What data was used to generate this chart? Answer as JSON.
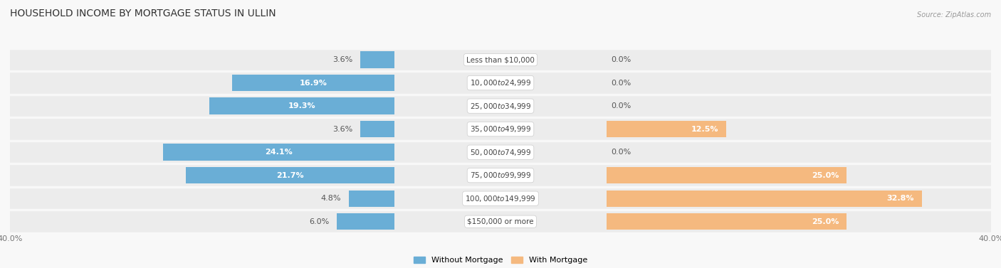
{
  "title": "HOUSEHOLD INCOME BY MORTGAGE STATUS IN ULLIN",
  "source": "Source: ZipAtlas.com",
  "categories": [
    "Less than $10,000",
    "$10,000 to $24,999",
    "$25,000 to $34,999",
    "$35,000 to $49,999",
    "$50,000 to $74,999",
    "$75,000 to $99,999",
    "$100,000 to $149,999",
    "$150,000 or more"
  ],
  "without_mortgage": [
    3.6,
    16.9,
    19.3,
    3.6,
    24.1,
    21.7,
    4.8,
    6.0
  ],
  "with_mortgage": [
    0.0,
    0.0,
    0.0,
    12.5,
    0.0,
    25.0,
    32.8,
    25.0
  ],
  "color_without": "#6aaed6",
  "color_with": "#f5b97f",
  "axis_max": 40.0,
  "legend_label_without": "Without Mortgage",
  "legend_label_with": "With Mortgage",
  "title_fontsize": 10,
  "bar_label_fontsize": 8,
  "cat_label_fontsize": 7.5,
  "axis_tick_fontsize": 8,
  "row_bg_color": "#efefef",
  "row_gap_color": "#f8f8f8",
  "fig_bg": "#f8f8f8"
}
